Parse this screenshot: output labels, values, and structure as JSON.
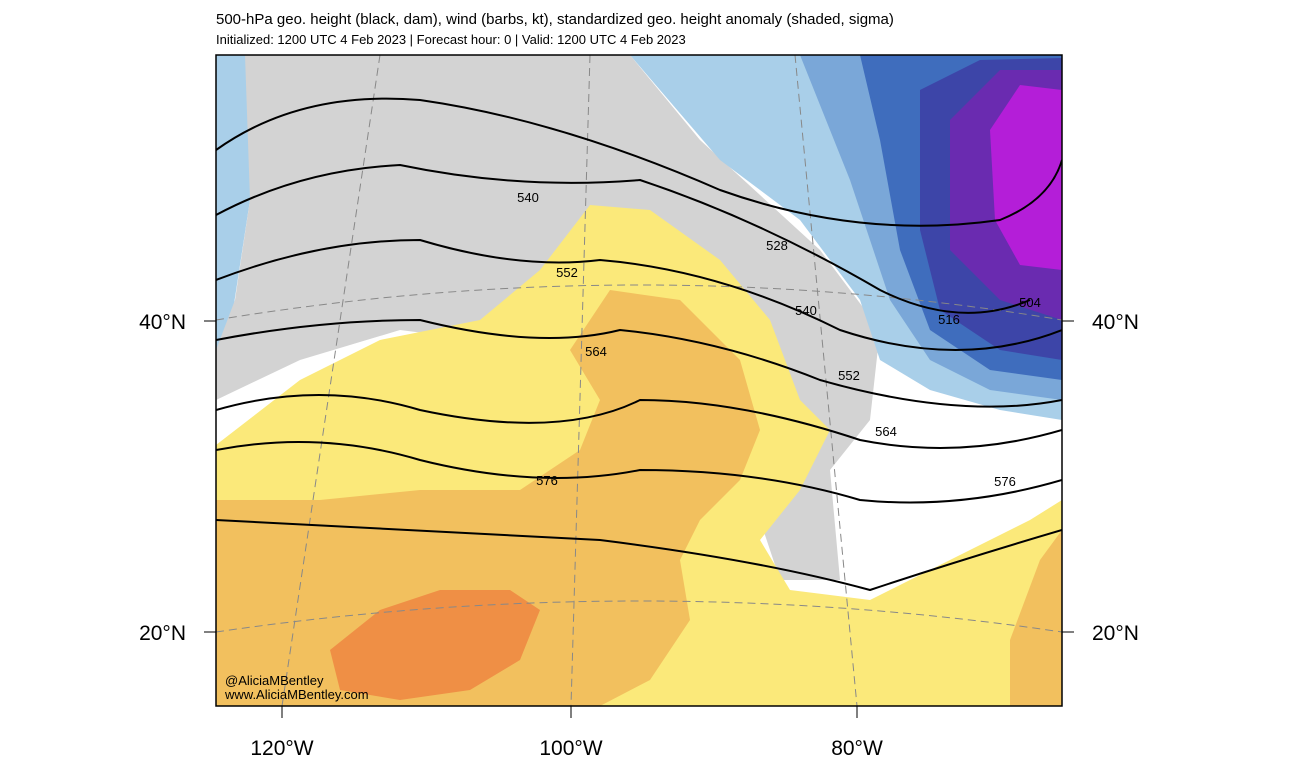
{
  "header": {
    "title": "500-hPa geo. height (black, dam), wind (barbs, kt), standardized geo. height anomaly (shaded, sigma)",
    "subtitle": "Initialized: 1200 UTC 4 Feb 2023 | Forecast hour: 0 | Valid: 1200 UTC 4 Feb 2023"
  },
  "map": {
    "lat_labels": [
      "40°N",
      "20°N"
    ],
    "lon_labels": [
      "120°W",
      "100°W",
      "80°W"
    ],
    "contour_labels": [
      540,
      552,
      564,
      576,
      528,
      540,
      516,
      504,
      552,
      564,
      576
    ],
    "credits": [
      "@AliciaMBentley",
      "www.AliciaMBentley.com"
    ]
  }
}
